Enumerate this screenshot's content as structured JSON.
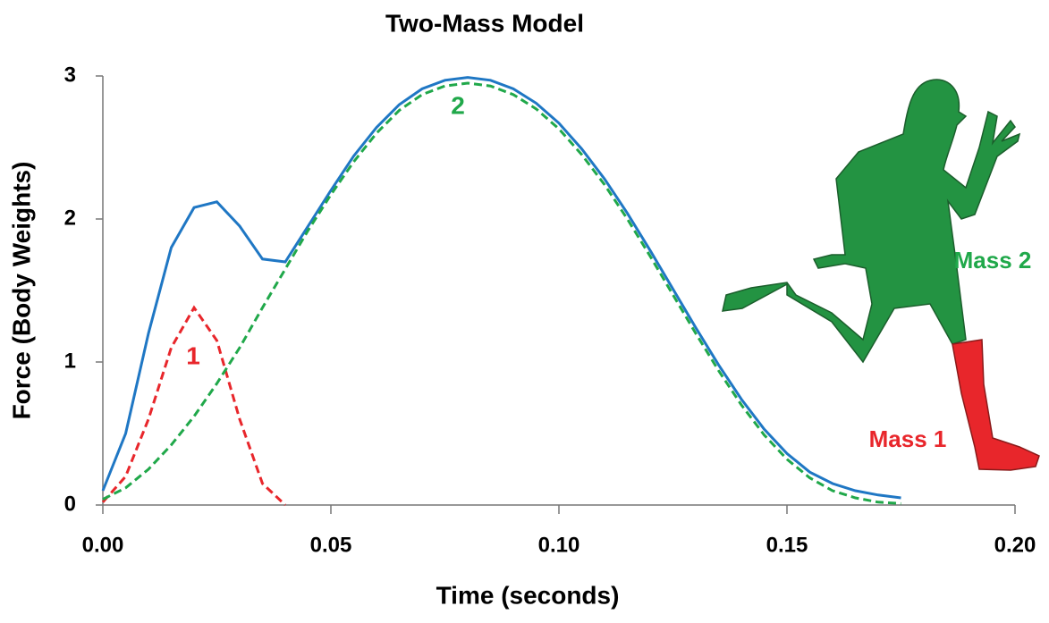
{
  "chart_data": {
    "type": "line",
    "title": "Two-Mass Model",
    "x_label": "Time (seconds)",
    "y_label": "Force (Body Weights)",
    "x": [
      0,
      0.005,
      0.01,
      0.015,
      0.02,
      0.025,
      0.03,
      0.035,
      0.04,
      0.045,
      0.05,
      0.055,
      0.06,
      0.065,
      0.07,
      0.075,
      0.08,
      0.085,
      0.09,
      0.095,
      0.1,
      0.105,
      0.11,
      0.115,
      0.12,
      0.125,
      0.13,
      0.135,
      0.14,
      0.145,
      0.15,
      0.155,
      0.16,
      0.165,
      0.17,
      0.175
    ],
    "series": [
      {
        "color": "#1f77c4",
        "dash": false,
        "values": [
          0.1,
          0.5,
          1.2,
          1.8,
          2.08,
          2.12,
          1.95,
          1.72,
          1.7,
          1.95,
          2.2,
          2.44,
          2.64,
          2.8,
          2.91,
          2.97,
          2.99,
          2.97,
          2.91,
          2.81,
          2.67,
          2.49,
          2.28,
          2.04,
          1.78,
          1.51,
          1.24,
          0.98,
          0.74,
          0.53,
          0.36,
          0.23,
          0.15,
          0.1,
          0.07,
          0.05
        ]
      },
      {
        "name": "1",
        "color": "#e8262b",
        "dash": true,
        "values": [
          0.02,
          0.2,
          0.6,
          1.1,
          1.38,
          1.15,
          0.6,
          0.15,
          0,
          null,
          null,
          null,
          null,
          null,
          null,
          null,
          null,
          null,
          null,
          null,
          null,
          null,
          null,
          null,
          null,
          null,
          null,
          null,
          null,
          null,
          null,
          null,
          null,
          null,
          null,
          null
        ]
      },
      {
        "name": "2",
        "color": "#20a84a",
        "dash": true,
        "values": [
          0.04,
          0.12,
          0.25,
          0.42,
          0.62,
          0.85,
          1.1,
          1.38,
          1.65,
          1.92,
          2.17,
          2.4,
          2.6,
          2.76,
          2.87,
          2.93,
          2.95,
          2.93,
          2.87,
          2.77,
          2.63,
          2.45,
          2.24,
          2.0,
          1.74,
          1.47,
          1.2,
          0.94,
          0.7,
          0.49,
          0.32,
          0.19,
          0.1,
          0.05,
          0.02,
          0.01
        ]
      }
    ],
    "annotations": [
      {
        "text": "Mass 2",
        "color": "#20a84a"
      },
      {
        "text": "Mass 1",
        "color": "#e8262b"
      }
    ],
    "xlim": [
      0,
      0.2
    ],
    "xticks": [
      {
        "value": 0,
        "label": "0.00"
      },
      {
        "value": 0.05,
        "label": "0.05"
      },
      {
        "value": 0.1,
        "label": "0.10"
      },
      {
        "value": 0.15,
        "label": "0.15"
      },
      {
        "value": 0.2,
        "label": "0.20"
      }
    ],
    "ylim": [
      0,
      3
    ],
    "yticks": [
      0,
      1,
      2,
      3
    ]
  }
}
